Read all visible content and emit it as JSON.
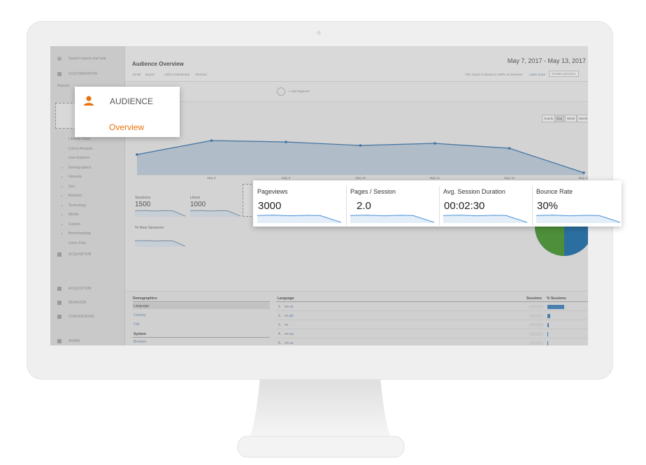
{
  "sidebar": {
    "search": "Search reports and help",
    "customization": "CUSTOMIZATION",
    "reports": "Reports",
    "audience_items": [
      "Lifetime Value",
      "Cohort Analysis",
      "User Explorer",
      "Demographics",
      "Interests",
      "Geo",
      "Behavior",
      "Technology",
      "Mobile",
      "Custom",
      "Benchmarking",
      "Users Flow"
    ],
    "sections": [
      "ACQUISITION",
      "ACQUISITION",
      "BEHAVIOR",
      "CONVERSIONS",
      "ADMIN"
    ]
  },
  "header": {
    "title": "Audience Overview",
    "date_range": "May 7, 2017 - May 13, 2017",
    "actions": [
      "Email",
      "Export",
      "Add to Dashboard",
      "Shortcut"
    ],
    "note": "This report is based on 100% of sessions.",
    "learn_more": "Learn more",
    "precision": "Greater precision",
    "add_segment": "+ Add Segment",
    "granularity": [
      "Hourly",
      "Day",
      "Week",
      "Month"
    ]
  },
  "chart_data": {
    "type": "line",
    "x": [
      null,
      "May 8",
      "May 9",
      "May 10",
      "May 11",
      "May 12",
      "May 13"
    ],
    "values": [
      2900,
      4900,
      4700,
      4200,
      4500,
      3800,
      300
    ],
    "ylim": [
      0,
      10000
    ],
    "color": "#3f73a3"
  },
  "metrics": [
    {
      "label": "Sessions",
      "value": "1500"
    },
    {
      "label": "Users",
      "value": "1000"
    },
    {
      "label": "% New Sessions"
    }
  ],
  "metrics_card": [
    {
      "label": "Pageviews",
      "value": "3000"
    },
    {
      "label": "Pages / Session",
      "value": "2.0"
    },
    {
      "label": "Avg. Session Duration",
      "value": "00:02:30"
    },
    {
      "label": "Bounce Rate",
      "value": "30%"
    }
  ],
  "audience_popup": {
    "title": "AUDIENCE",
    "item": "Overview"
  },
  "table": {
    "left_header": "Demographics",
    "left_rows": [
      "Language",
      "Country",
      "City"
    ],
    "system": "System",
    "system_rows": [
      "Browser"
    ],
    "right_header": "Language",
    "columns": [
      "Sessions",
      "% Sessions"
    ],
    "rows": [
      {
        "rank": "1.",
        "language": "en-us"
      },
      {
        "rank": "2.",
        "language": "en-gb"
      },
      {
        "rank": "3.",
        "language": "es"
      },
      {
        "rank": "4.",
        "language": "en-au"
      },
      {
        "rank": "5.",
        "language": "en-ca"
      }
    ]
  }
}
